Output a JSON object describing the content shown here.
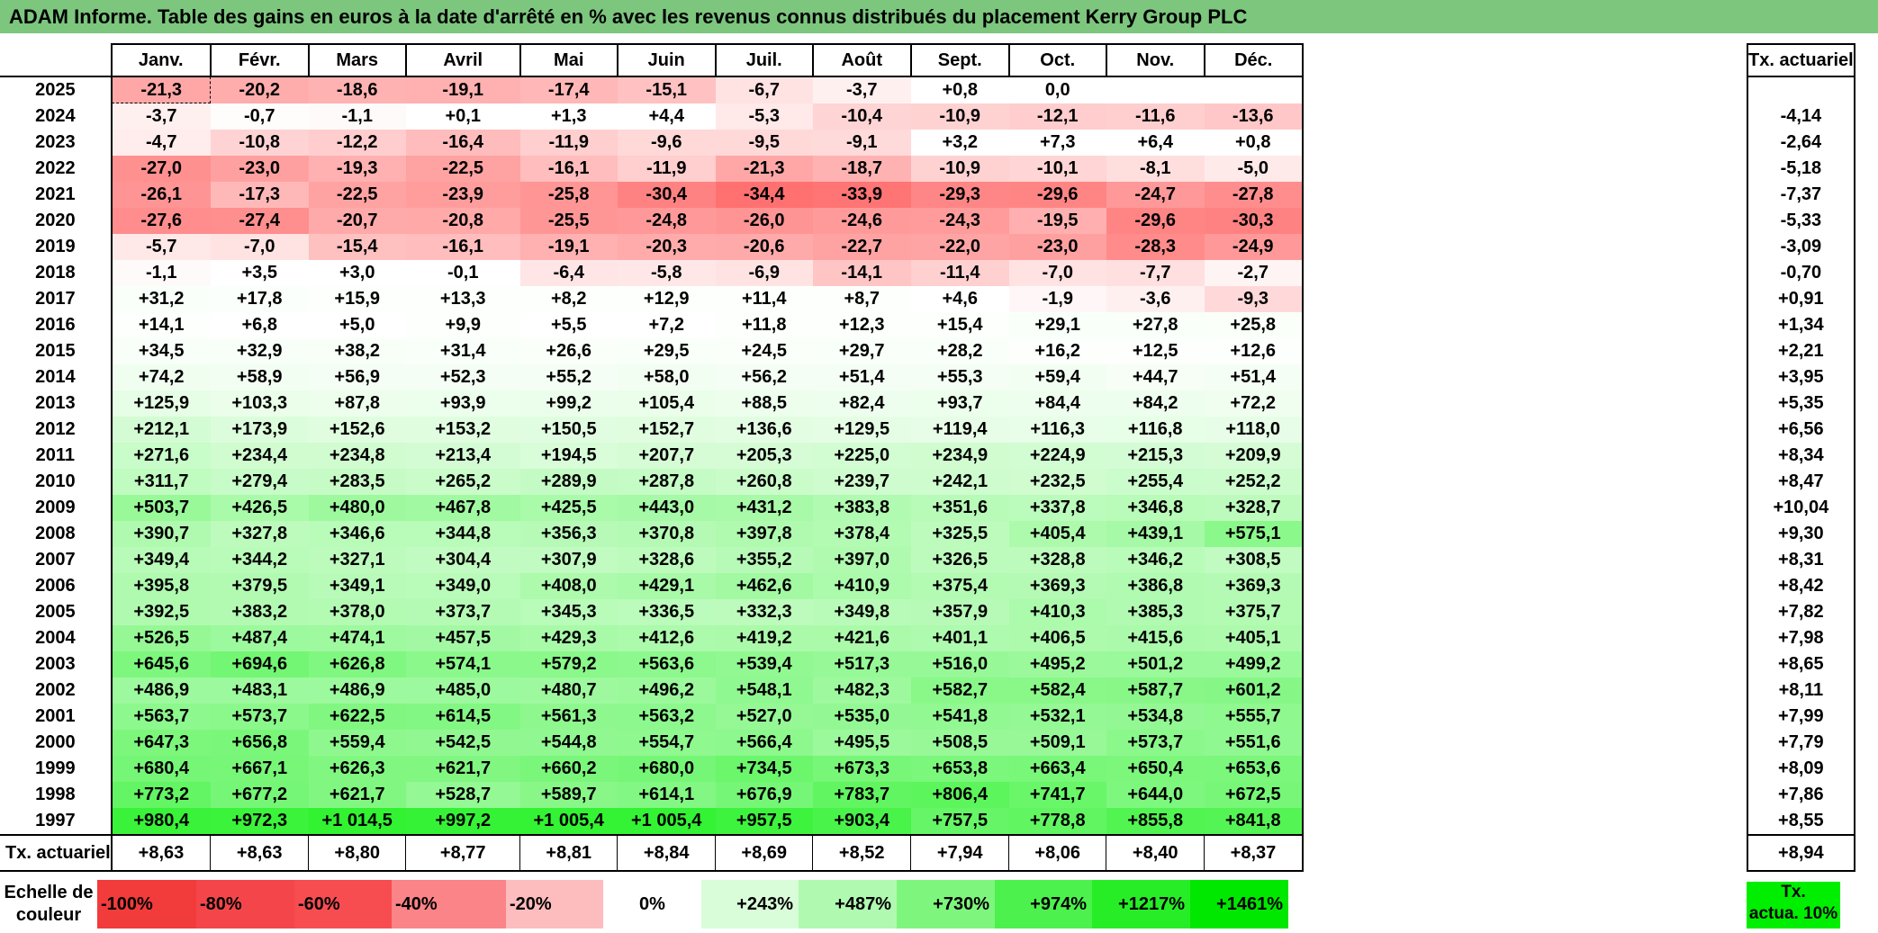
{
  "title": "ADAM Informe. Table des gains en euros à la date d'arrêté en % avec les revenus connus distribués du placement Kerry Group PLC",
  "months": [
    "Janv.",
    "Févr.",
    "Mars",
    "Avril",
    "Mai",
    "Juin",
    "Juil.",
    "Août",
    "Sept.",
    "Oct.",
    "Nov.",
    "Déc."
  ],
  "side_header": "Tx. actuariel",
  "rows": [
    {
      "year": "2025",
      "values": [
        "-21,3",
        "-20,2",
        "-18,6",
        "-19,1",
        "-17,4",
        "-15,1",
        "-6,7",
        "-3,7",
        "+0,8",
        "0,0",
        "",
        ""
      ],
      "tx": ""
    },
    {
      "year": "2024",
      "values": [
        "-3,7",
        "-0,7",
        "-1,1",
        "+0,1",
        "+1,3",
        "+4,4",
        "-5,3",
        "-10,4",
        "-10,9",
        "-12,1",
        "-11,6",
        "-13,6"
      ],
      "tx": "-4,14"
    },
    {
      "year": "2023",
      "values": [
        "-4,7",
        "-10,8",
        "-12,2",
        "-16,4",
        "-11,9",
        "-9,6",
        "-9,5",
        "-9,1",
        "+3,2",
        "+7,3",
        "+6,4",
        "+0,8"
      ],
      "tx": "-2,64"
    },
    {
      "year": "2022",
      "values": [
        "-27,0",
        "-23,0",
        "-19,3",
        "-22,5",
        "-16,1",
        "-11,9",
        "-21,3",
        "-18,7",
        "-10,9",
        "-10,1",
        "-8,1",
        "-5,0"
      ],
      "tx": "-5,18"
    },
    {
      "year": "2021",
      "values": [
        "-26,1",
        "-17,3",
        "-22,5",
        "-23,9",
        "-25,8",
        "-30,4",
        "-34,4",
        "-33,9",
        "-29,3",
        "-29,6",
        "-24,7",
        "-27,8"
      ],
      "tx": "-7,37"
    },
    {
      "year": "2020",
      "values": [
        "-27,6",
        "-27,4",
        "-20,7",
        "-20,8",
        "-25,5",
        "-24,8",
        "-26,0",
        "-24,6",
        "-24,3",
        "-19,5",
        "-29,6",
        "-30,3"
      ],
      "tx": "-5,33"
    },
    {
      "year": "2019",
      "values": [
        "-5,7",
        "-7,0",
        "-15,4",
        "-16,1",
        "-19,1",
        "-20,3",
        "-20,6",
        "-22,7",
        "-22,0",
        "-23,0",
        "-28,3",
        "-24,9"
      ],
      "tx": "-3,09"
    },
    {
      "year": "2018",
      "values": [
        "-1,1",
        "+3,5",
        "+3,0",
        "-0,1",
        "-6,4",
        "-5,8",
        "-6,9",
        "-14,1",
        "-11,4",
        "-7,0",
        "-7,7",
        "-2,7"
      ],
      "tx": "-0,70"
    },
    {
      "year": "2017",
      "values": [
        "+31,2",
        "+17,8",
        "+15,9",
        "+13,3",
        "+8,2",
        "+12,9",
        "+11,4",
        "+8,7",
        "+4,6",
        "-1,9",
        "-3,6",
        "-9,3"
      ],
      "tx": "+0,91"
    },
    {
      "year": "2016",
      "values": [
        "+14,1",
        "+6,8",
        "+5,0",
        "+9,9",
        "+5,5",
        "+7,2",
        "+11,8",
        "+12,3",
        "+15,4",
        "+29,1",
        "+27,8",
        "+25,8"
      ],
      "tx": "+1,34"
    },
    {
      "year": "2015",
      "values": [
        "+34,5",
        "+32,9",
        "+38,2",
        "+31,4",
        "+26,6",
        "+29,5",
        "+24,5",
        "+29,7",
        "+28,2",
        "+16,2",
        "+12,5",
        "+12,6"
      ],
      "tx": "+2,21"
    },
    {
      "year": "2014",
      "values": [
        "+74,2",
        "+58,9",
        "+56,9",
        "+52,3",
        "+55,2",
        "+58,0",
        "+56,2",
        "+51,4",
        "+55,3",
        "+59,4",
        "+44,7",
        "+51,4"
      ],
      "tx": "+3,95"
    },
    {
      "year": "2013",
      "values": [
        "+125,9",
        "+103,3",
        "+87,8",
        "+93,9",
        "+99,2",
        "+105,4",
        "+88,5",
        "+82,4",
        "+93,7",
        "+84,4",
        "+84,2",
        "+72,2"
      ],
      "tx": "+5,35"
    },
    {
      "year": "2012",
      "values": [
        "+212,1",
        "+173,9",
        "+152,6",
        "+153,2",
        "+150,5",
        "+152,7",
        "+136,6",
        "+129,5",
        "+119,4",
        "+116,3",
        "+116,8",
        "+118,0"
      ],
      "tx": "+6,56"
    },
    {
      "year": "2011",
      "values": [
        "+271,6",
        "+234,4",
        "+234,8",
        "+213,4",
        "+194,5",
        "+207,7",
        "+205,3",
        "+225,0",
        "+234,9",
        "+224,9",
        "+215,3",
        "+209,9"
      ],
      "tx": "+8,34"
    },
    {
      "year": "2010",
      "values": [
        "+311,7",
        "+279,4",
        "+283,5",
        "+265,2",
        "+289,9",
        "+287,8",
        "+260,8",
        "+239,7",
        "+242,1",
        "+232,5",
        "+255,4",
        "+252,2"
      ],
      "tx": "+8,47"
    },
    {
      "year": "2009",
      "values": [
        "+503,7",
        "+426,5",
        "+480,0",
        "+467,8",
        "+425,5",
        "+443,0",
        "+431,2",
        "+383,8",
        "+351,6",
        "+337,8",
        "+346,8",
        "+328,7"
      ],
      "tx": "+10,04"
    },
    {
      "year": "2008",
      "values": [
        "+390,7",
        "+327,8",
        "+346,6",
        "+344,8",
        "+356,3",
        "+370,8",
        "+397,8",
        "+378,4",
        "+325,5",
        "+405,4",
        "+439,1",
        "+575,1"
      ],
      "tx": "+9,30"
    },
    {
      "year": "2007",
      "values": [
        "+349,4",
        "+344,2",
        "+327,1",
        "+304,4",
        "+307,9",
        "+328,6",
        "+355,2",
        "+397,0",
        "+326,5",
        "+328,8",
        "+346,2",
        "+308,5"
      ],
      "tx": "+8,31"
    },
    {
      "year": "2006",
      "values": [
        "+395,8",
        "+379,5",
        "+349,1",
        "+349,0",
        "+408,0",
        "+429,1",
        "+462,6",
        "+410,9",
        "+375,4",
        "+369,3",
        "+386,8",
        "+369,3"
      ],
      "tx": "+8,42"
    },
    {
      "year": "2005",
      "values": [
        "+392,5",
        "+383,2",
        "+378,0",
        "+373,7",
        "+345,3",
        "+336,5",
        "+332,3",
        "+349,8",
        "+357,9",
        "+410,3",
        "+385,3",
        "+375,7"
      ],
      "tx": "+7,82"
    },
    {
      "year": "2004",
      "values": [
        "+526,5",
        "+487,4",
        "+474,1",
        "+457,5",
        "+429,3",
        "+412,6",
        "+419,2",
        "+421,6",
        "+401,1",
        "+406,5",
        "+415,6",
        "+405,1"
      ],
      "tx": "+7,98"
    },
    {
      "year": "2003",
      "values": [
        "+645,6",
        "+694,6",
        "+626,8",
        "+574,1",
        "+579,2",
        "+563,6",
        "+539,4",
        "+517,3",
        "+516,0",
        "+495,2",
        "+501,2",
        "+499,2"
      ],
      "tx": "+8,65"
    },
    {
      "year": "2002",
      "values": [
        "+486,9",
        "+483,1",
        "+486,9",
        "+485,0",
        "+480,7",
        "+496,2",
        "+548,1",
        "+482,3",
        "+582,7",
        "+582,4",
        "+587,7",
        "+601,2"
      ],
      "tx": "+8,11"
    },
    {
      "year": "2001",
      "values": [
        "+563,7",
        "+573,7",
        "+622,5",
        "+614,5",
        "+561,3",
        "+563,2",
        "+527,0",
        "+535,0",
        "+541,8",
        "+532,1",
        "+534,8",
        "+555,7"
      ],
      "tx": "+7,99"
    },
    {
      "year": "2000",
      "values": [
        "+647,3",
        "+656,8",
        "+559,4",
        "+542,5",
        "+544,8",
        "+554,7",
        "+566,4",
        "+495,5",
        "+508,5",
        "+509,1",
        "+573,7",
        "+551,6"
      ],
      "tx": "+7,79"
    },
    {
      "year": "1999",
      "values": [
        "+680,4",
        "+667,1",
        "+626,3",
        "+621,7",
        "+660,2",
        "+680,0",
        "+734,5",
        "+673,3",
        "+653,8",
        "+663,4",
        "+650,4",
        "+653,6"
      ],
      "tx": "+8,09"
    },
    {
      "year": "1998",
      "values": [
        "+773,2",
        "+677,2",
        "+621,7",
        "+528,7",
        "+589,7",
        "+614,1",
        "+676,9",
        "+783,7",
        "+806,4",
        "+741,7",
        "+644,0",
        "+672,5"
      ],
      "tx": "+7,86"
    },
    {
      "year": "1997",
      "values": [
        "+980,4",
        "+972,3",
        "+1 014,5",
        "+997,2",
        "+1 005,4",
        "+1 005,4",
        "+957,5",
        "+903,4",
        "+757,5",
        "+778,8",
        "+855,8",
        "+841,8"
      ],
      "tx": "+8,55"
    }
  ],
  "footer": {
    "label": "Tx. actuariel",
    "values": [
      "+8,63",
      "+8,63",
      "+8,80",
      "+8,77",
      "+8,81",
      "+8,84",
      "+8,69",
      "+8,52",
      "+7,94",
      "+8,06",
      "+8,40",
      "+8,37"
    ],
    "total": "+8,94"
  },
  "scale": {
    "label_line1": "Echelle de",
    "label_line2": "couleur",
    "items": [
      {
        "text": "-100%",
        "color": "#f23b3b",
        "kind": "neg"
      },
      {
        "text": "-80%",
        "color": "#f4464a",
        "kind": "neg"
      },
      {
        "text": "-60%",
        "color": "#f74d51",
        "kind": "neg"
      },
      {
        "text": "-40%",
        "color": "#fa8487",
        "kind": "neg"
      },
      {
        "text": "-20%",
        "color": "#fdbcbd",
        "kind": "neg"
      },
      {
        "text": "0%",
        "color": "#ffffff",
        "kind": "zero"
      },
      {
        "text": "+243%",
        "color": "#d9fdd9",
        "kind": "pos"
      },
      {
        "text": "+487%",
        "color": "#b0f9b0",
        "kind": "pos"
      },
      {
        "text": "+730%",
        "color": "#7ef67e",
        "kind": "pos"
      },
      {
        "text": "+974%",
        "color": "#4df14d",
        "kind": "pos"
      },
      {
        "text": "+1217%",
        "color": "#27ed27",
        "kind": "pos"
      },
      {
        "text": "+1461%",
        "color": "#00e700",
        "kind": "pos"
      }
    ],
    "tx_line1": "Tx.",
    "tx_line2": "actua. 10%"
  },
  "colors": {
    "title_bg": "#7cc67e",
    "negative": "#ff6f6f",
    "positive": "#33ee33"
  }
}
